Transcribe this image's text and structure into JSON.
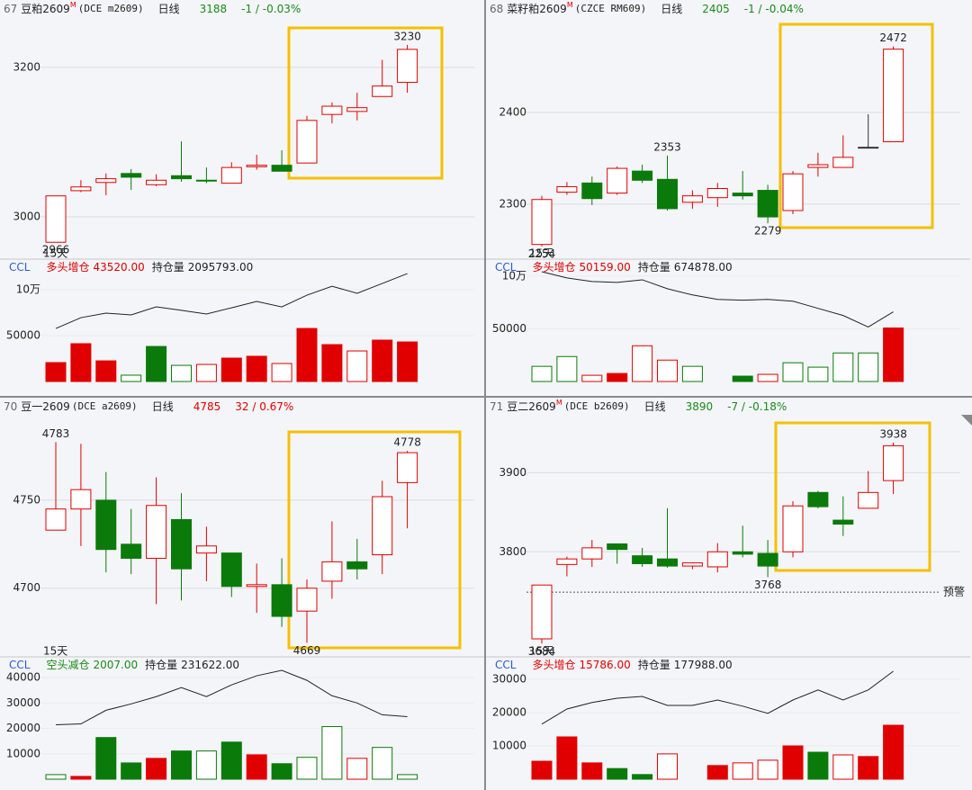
{
  "chart_data": [
    {
      "type": "candlestick",
      "header": {
        "index": "67",
        "name": "豆粕2609",
        "mark": "M",
        "code": "(DCE m2609)",
        "period": "日线",
        "price": "3188",
        "change": "-1 / -0.03%",
        "color": "#1a8a1a"
      },
      "period_count": "15天",
      "ylim": [
        2941,
        3266
      ],
      "yticks": [
        3000,
        3200
      ],
      "open": [
        2966,
        3035,
        3046,
        3058,
        3043,
        3055,
        3049,
        3045,
        3067,
        3069,
        3072,
        3137,
        3141,
        3161,
        3180
      ],
      "high": [
        3028,
        3049,
        3058,
        3064,
        3057,
        3101,
        3066,
        3073,
        3083,
        3089,
        3135,
        3153,
        3166,
        3210,
        3230
      ],
      "low": [
        2966,
        3033,
        3029,
        3036,
        3041,
        3047,
        3045,
        3045,
        3063,
        3061,
        3072,
        3125,
        3129,
        3161,
        3166
      ],
      "close": [
        3028,
        3040,
        3051,
        3053,
        3049,
        3051,
        3048,
        3066,
        3069,
        3061,
        3129,
        3148,
        3146,
        3175,
        3224
      ],
      "high_labels": [
        14
      ],
      "low_labels": [
        0
      ],
      "volume": {
        "indicator": "CCL",
        "status": "多头增仓",
        "status_value": "43520.00",
        "status_color": "#e00000",
        "oi_label": "持仓量",
        "oi_value": "2095793.00",
        "ylim": [
          0,
          121600
        ],
        "yticks": [
          50000,
          {
            "value": 100000,
            "label": "10万"
          }
        ],
        "values": [
          20600,
          41200,
          22500,
          6900,
          38200,
          17600,
          18600,
          25500,
          27500,
          19600,
          57800,
          40200,
          33300,
          45100,
          43100
        ],
        "styles": [
          "red",
          "red",
          "red",
          "green-hollow",
          "green",
          "green-hollow",
          "red-hollow",
          "red",
          "red",
          "red-hollow",
          "red",
          "red",
          "red-hollow",
          "red",
          "red"
        ],
        "oi": [
          1790000,
          1849000,
          1874000,
          1864000,
          1908000,
          1889000,
          1869000,
          1903000,
          1938000,
          1908000,
          1972000,
          2021000,
          1982000,
          2036000,
          2090000
        ],
        "y2lim": [
          1500000,
          2110000
        ]
      }
    },
    {
      "type": "candlestick",
      "header": {
        "index": "68",
        "name": "菜籽粕2609",
        "mark": "M",
        "code": "(CZCE RM609)",
        "period": "日线",
        "price": "2405",
        "change": "-1 / -0.04%",
        "color": "#1a8a1a"
      },
      "period_count": "15天",
      "ylim": [
        2238,
        2503
      ],
      "yticks": [
        2300,
        2400
      ],
      "open": [
        2256,
        2313,
        2323,
        2312,
        2336,
        2327,
        2302,
        2307,
        2312,
        2315,
        2293,
        2340,
        2340,
        2362,
        2368
      ],
      "high": [
        2309,
        2324,
        2330,
        2341,
        2343,
        2353,
        2315,
        2323,
        2336,
        2321,
        2336,
        2356,
        2375,
        2398,
        2472
      ],
      "low": [
        2254,
        2310,
        2299,
        2310,
        2323,
        2293,
        2295,
        2297,
        2305,
        2279,
        2289,
        2330,
        2340,
        2362,
        2368
      ],
      "close": [
        2305,
        2319,
        2306,
        2339,
        2326,
        2295,
        2309,
        2317,
        2309,
        2286,
        2333,
        2343,
        2351,
        2362,
        2469
      ],
      "high_labels": [
        5,
        14
      ],
      "low_labels": [
        0,
        9
      ],
      "volume": {
        "indicator": "CCL",
        "status": "多头增仓",
        "status_value": "50159.00",
        "status_color": "#e00000",
        "oi_label": "持仓量",
        "oi_value": "674878.00",
        "ylim": [
          0,
          105900
        ],
        "yticks": [
          50000,
          {
            "value": 100000,
            "label": "10万"
          }
        ],
        "values": [
          14400,
          23700,
          5900,
          7600,
          33900,
          20300,
          14400,
          null,
          5100,
          6800,
          17800,
          13600,
          27100,
          27100,
          50800
        ],
        "styles": [
          "green-hollow",
          "green-hollow",
          "red-hollow",
          "red",
          "red-hollow",
          "red-hollow",
          "green-hollow",
          null,
          "green",
          "red-hollow",
          "green-hollow",
          "green-hollow",
          "green-hollow",
          "green-hollow",
          "red"
        ],
        "oi": [
          718100,
          711400,
          707500,
          706600,
          709400,
          699800,
          693100,
          688300,
          687400,
          688300,
          686400,
          678700,
          671000,
          658600,
          674900
        ],
        "y2lim": [
          600000,
          720000
        ]
      }
    },
    {
      "type": "candlestick",
      "header": {
        "index": "70",
        "name": "豆一2609",
        "code": "(DCE a2609)",
        "period": "日线",
        "price": "4785",
        "change": "32 / 0.67%",
        "color": "#e00000"
      },
      "period_count": "15天",
      "ylim": [
        4660,
        4798
      ],
      "yticks": [
        4700,
        4750
      ],
      "open": [
        4733,
        4745,
        4750,
        4725,
        4717,
        4739,
        4720,
        4720,
        4701,
        4702,
        4687,
        4704,
        4715,
        4719,
        4760
      ],
      "high": [
        4783,
        4782,
        4766,
        4745,
        4763,
        4754,
        4735,
        4720,
        4714,
        4717,
        4705,
        4738,
        4728,
        4761,
        4778
      ],
      "low": [
        4733,
        4724,
        4709,
        4708,
        4691,
        4693,
        4704,
        4695,
        4686,
        4678,
        4669,
        4694,
        4705,
        4708,
        4734
      ],
      "close": [
        4745,
        4756,
        4722,
        4717,
        4747,
        4711,
        4724,
        4701,
        4702,
        4684,
        4700,
        4715,
        4711,
        4752,
        4777
      ],
      "high_labels": [
        0,
        14
      ],
      "low_labels": [
        10
      ],
      "volume": {
        "indicator": "CCL",
        "status": "空头减仓",
        "status_value": "2007.00",
        "status_color": "#1a8a1a",
        "oi_label": "持仓量",
        "oi_value": "231622.00",
        "ylim": [
          0,
          43900
        ],
        "yticks": [
          10000,
          20000,
          30000,
          40000
        ],
        "values": [
          1800,
          1100,
          16400,
          6400,
          8200,
          11100,
          11100,
          14600,
          9600,
          6100,
          8600,
          20700,
          8200,
          12500,
          1800
        ],
        "styles": [
          "green-hollow",
          "red",
          "green",
          "green",
          "red",
          "green",
          "green-hollow",
          "green",
          "red",
          "green",
          "green-hollow",
          "green-hollow",
          "red-hollow",
          "green-hollow",
          "green-hollow"
        ],
        "oi": [
          228000,
          228400,
          234400,
          237200,
          240400,
          244400,
          240400,
          245600,
          249600,
          252000,
          247600,
          240800,
          237600,
          232400,
          231600
        ],
        "y2lim": [
          204000,
          253200
        ]
      }
    },
    {
      "type": "candlestick",
      "header": {
        "index": "71",
        "name": "豆二2609",
        "mark": "M",
        "code": "(DCE b2609)",
        "period": "日线",
        "price": "3890",
        "change": "-7 / -0.18%",
        "color": "#1a8a1a"
      },
      "period_count": "15天",
      "ylim": [
        3665,
        3972
      ],
      "yticks": [
        3800,
        3900
      ],
      "alert": {
        "value": 3749,
        "label": "预警"
      },
      "open": [
        3690,
        3784,
        3791,
        3810,
        3795,
        3791,
        3782,
        3781,
        3800,
        3798,
        3800,
        3875,
        3840,
        3855,
        3890
      ],
      "high": [
        3758,
        3794,
        3815,
        3810,
        3805,
        3855,
        3786,
        3811,
        3833,
        3815,
        3864,
        3877,
        3870,
        3902,
        3938
      ],
      "low": [
        3684,
        3769,
        3781,
        3785,
        3781,
        3780,
        3778,
        3774,
        3793,
        3768,
        3793,
        3855,
        3820,
        3855,
        3873
      ],
      "close": [
        3758,
        3791,
        3805,
        3803,
        3785,
        3782,
        3786,
        3800,
        3797,
        3782,
        3858,
        3857,
        3835,
        3875,
        3934
      ],
      "high_labels": [
        14
      ],
      "low_labels": [
        0,
        9
      ],
      "volume": {
        "indicator": "CCL",
        "status": "多头增仓",
        "status_value": "15786.00",
        "status_color": "#e00000",
        "oi_label": "持仓量",
        "oi_value": "177988.00",
        "ylim": [
          0,
          33500
        ],
        "yticks": [
          10000,
          20000,
          30000
        ],
        "values": [
          5400,
          12700,
          4900,
          3200,
          1400,
          7600,
          null,
          4100,
          4900,
          5700,
          10000,
          8100,
          7300,
          6800,
          16200
        ],
        "styles": [
          "red",
          "red",
          "red",
          "green",
          "green",
          "red-hollow",
          null,
          "red",
          "red-hollow",
          "red-hollow",
          "red",
          "green",
          "red-hollow",
          "red",
          "red"
        ],
        "oi": [
          163300,
          167500,
          169300,
          170500,
          171000,
          168500,
          168500,
          170000,
          168300,
          166300,
          170000,
          172800,
          170000,
          172800,
          178000
        ],
        "y2lim": [
          148000,
          179000
        ]
      }
    }
  ]
}
